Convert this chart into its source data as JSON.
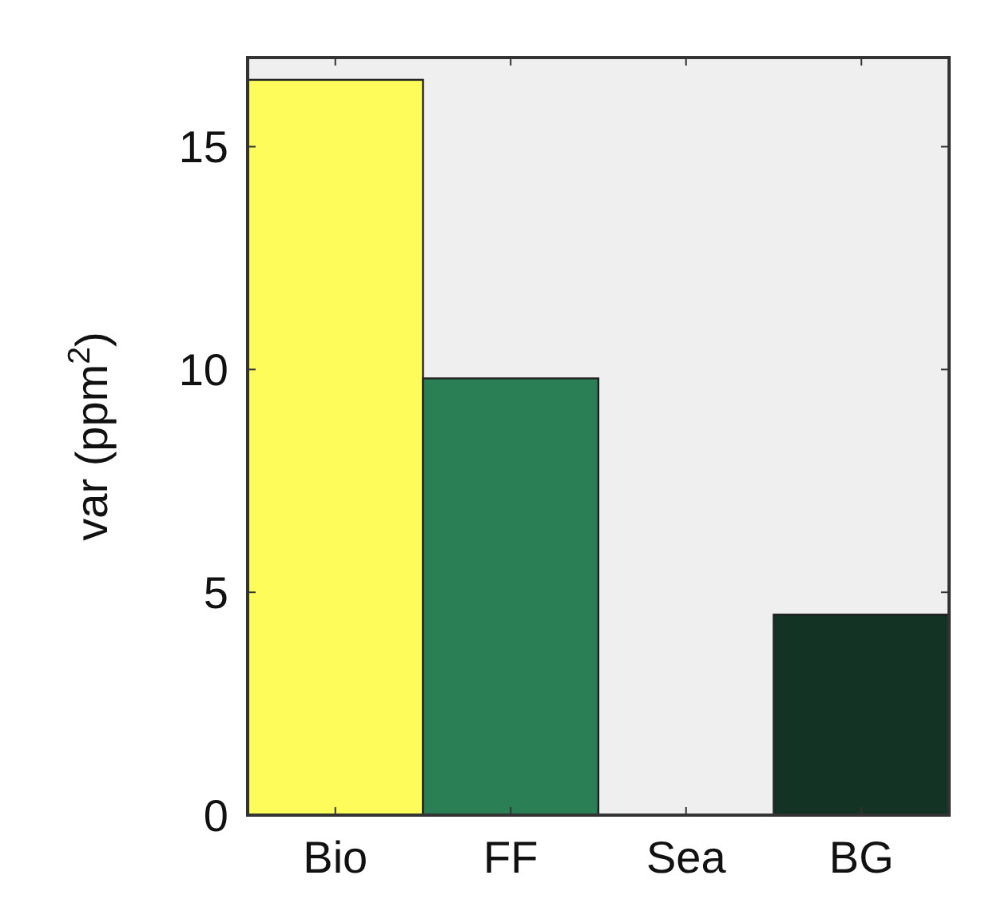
{
  "chart_data": {
    "type": "bar",
    "ylabel": "var (ppm$^{2}$)",
    "categories": [
      "Bio",
      "FF",
      "Sea",
      "BG"
    ],
    "values": [
      16.5,
      9.8,
      0,
      4.5
    ],
    "colors": [
      "#fdfc5a",
      "#2b7f55",
      "#1f5c3d",
      "#133324"
    ],
    "ylim": [
      0,
      17
    ],
    "yticks": [
      0,
      5,
      10,
      15
    ],
    "grid": false
  }
}
